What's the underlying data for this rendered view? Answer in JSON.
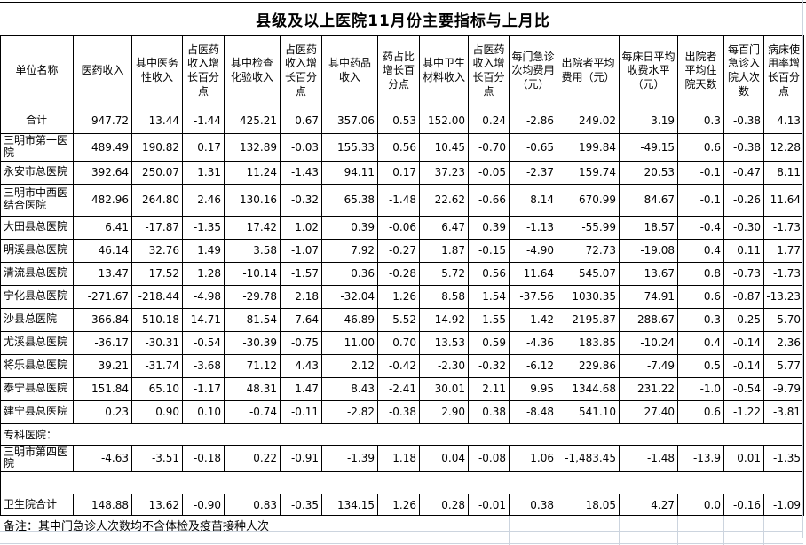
{
  "title": "县级及以上医院11月份主要指标与上月比",
  "note": "备注：其中门急诊人次数均不含体检及疫苗接种人次",
  "colors": {
    "border": "#000000",
    "gridline": "#ccd4de",
    "background": "#ffffff",
    "text": "#000000"
  },
  "table": {
    "columns": [
      "单位名称",
      "医药收入",
      "其中医务性收入",
      "占医药收入增长百分点",
      "其中检查化验收入",
      "占医药收入增长百分点",
      "其中药品收入",
      "药占比增长百分点",
      "其中卫生材料收入",
      "占医药收入增长百分点",
      "每门急诊次均费用（元）",
      "出院者平均费用（元）",
      "每床日平均收费水平（元）",
      "出院者平均住院天数",
      "每百门急诊入院人次数",
      "病床使用率增长百分点"
    ],
    "rows": [
      {
        "label": "合计",
        "label_align": "center",
        "values": [
          "947.72",
          "13.44",
          "-1.44",
          "425.21",
          "0.67",
          "357.06",
          "0.53",
          "152.00",
          "0.24",
          "-2.86",
          "249.02",
          "3.19",
          "0.3",
          "-0.38",
          "4.13"
        ]
      },
      {
        "label": "三明市第一医院",
        "values": [
          "489.49",
          "190.82",
          "0.17",
          "132.89",
          "-0.03",
          "155.33",
          "0.56",
          "10.45",
          "-0.70",
          "-0.65",
          "199.84",
          "-49.15",
          "0.6",
          "-0.38",
          "12.28"
        ]
      },
      {
        "label": "永安市总医院",
        "values": [
          "392.64",
          "250.07",
          "1.31",
          "11.24",
          "-1.43",
          "94.11",
          "0.17",
          "37.23",
          "-0.05",
          "-2.37",
          "159.74",
          "20.53",
          "-0.1",
          "-0.47",
          "8.11"
        ]
      },
      {
        "label": "三明市中西医结合医院",
        "values": [
          "482.96",
          "264.80",
          "2.46",
          "130.16",
          "-0.32",
          "65.38",
          "-1.48",
          "22.62",
          "-0.66",
          "8.14",
          "670.99",
          "84.67",
          "-0.1",
          "-0.26",
          "11.64"
        ]
      },
      {
        "label": "大田县总医院",
        "values": [
          "6.41",
          "-17.87",
          "-1.35",
          "17.42",
          "1.02",
          "0.39",
          "-0.06",
          "6.47",
          "0.39",
          "-1.13",
          "-55.99",
          "18.57",
          "-0.4",
          "-0.30",
          "-1.73"
        ]
      },
      {
        "label": "明溪县总医院",
        "values": [
          "46.14",
          "32.76",
          "1.49",
          "3.58",
          "-1.07",
          "7.92",
          "-0.27",
          "1.87",
          "-0.15",
          "-4.90",
          "72.73",
          "-19.08",
          "0.4",
          "0.11",
          "1.77"
        ]
      },
      {
        "label": "清流县总医院",
        "values": [
          "13.47",
          "17.52",
          "1.28",
          "-10.14",
          "-1.57",
          "0.36",
          "-0.28",
          "5.72",
          "0.56",
          "11.64",
          "545.07",
          "13.67",
          "0.8",
          "-0.73",
          "-1.73"
        ]
      },
      {
        "label": "宁化县总医院",
        "values": [
          "-271.67",
          "-218.44",
          "-4.98",
          "-29.78",
          "2.18",
          "-32.04",
          "1.26",
          "8.58",
          "1.54",
          "-37.56",
          "1030.35",
          "74.91",
          "0.6",
          "-0.87",
          "-13.23"
        ]
      },
      {
        "label": "沙县总医院",
        "values": [
          "-366.84",
          "-510.18",
          "-14.71",
          "81.54",
          "7.64",
          "46.89",
          "5.52",
          "14.92",
          "1.55",
          "-1.42",
          "-2195.87",
          "-288.67",
          "0.3",
          "-0.25",
          "5.70"
        ]
      },
      {
        "label": "尤溪县总医院",
        "values": [
          "-36.17",
          "-30.31",
          "-0.54",
          "-30.39",
          "-0.75",
          "11.00",
          "0.70",
          "13.53",
          "0.59",
          "-4.36",
          "183.85",
          "-10.24",
          "0.4",
          "-0.14",
          "2.36"
        ]
      },
      {
        "label": "将乐县总医院",
        "values": [
          "39.21",
          "-31.74",
          "-3.68",
          "71.12",
          "4.43",
          "2.12",
          "-0.42",
          "-2.30",
          "-0.32",
          "-6.12",
          "229.86",
          "-7.49",
          "0.5",
          "-0.14",
          "5.77"
        ]
      },
      {
        "label": "泰宁县总医院",
        "values": [
          "151.84",
          "65.10",
          "-1.17",
          "48.31",
          "1.47",
          "8.43",
          "-2.41",
          "30.01",
          "2.11",
          "9.95",
          "1344.68",
          "231.22",
          "-1.0",
          "-0.54",
          "-9.79"
        ]
      },
      {
        "label": "建宁县总医院",
        "values": [
          "0.23",
          "0.90",
          "0.10",
          "-0.74",
          "-0.11",
          "-2.82",
          "-0.38",
          "2.90",
          "0.38",
          "-8.48",
          "541.10",
          "27.40",
          "0.6",
          "-1.22",
          "-3.81"
        ]
      },
      {
        "type": "section",
        "label": "专科医院："
      },
      {
        "label": "三明市第四医院",
        "values": [
          "-4.63",
          "-3.51",
          "-0.18",
          "0.22",
          "-0.91",
          "-1.39",
          "1.18",
          "0.04",
          "-0.08",
          "1.06",
          "-1,483.45",
          "-1.48",
          "-13.9",
          "0.01",
          "-1.35"
        ]
      },
      {
        "type": "spacer"
      },
      {
        "label": "卫生院合计",
        "values": [
          "148.88",
          "13.62",
          "-0.90",
          "0.83",
          "-0.35",
          "134.15",
          "1.26",
          "0.28",
          "-0.01",
          "0.38",
          "18.05",
          "4.27",
          "0.0",
          "-0.16",
          "-1.09"
        ]
      }
    ]
  }
}
